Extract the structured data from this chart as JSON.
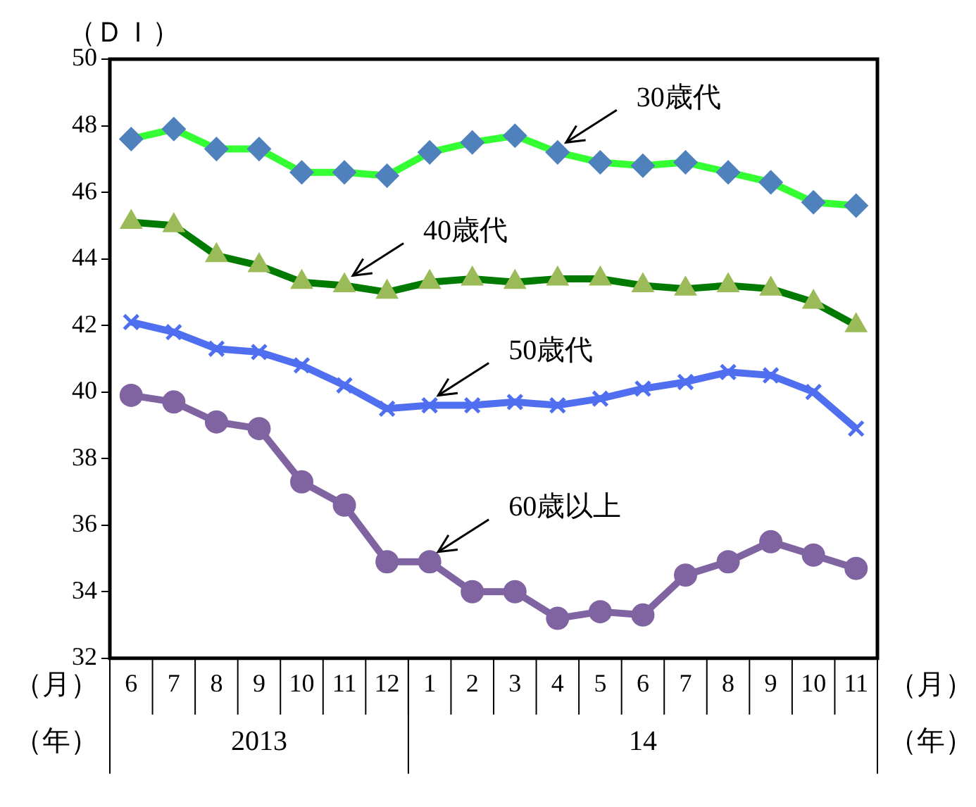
{
  "chart_data": {
    "type": "line",
    "ylabel": "（ＤＩ）",
    "categories": [
      "6",
      "7",
      "8",
      "9",
      "10",
      "11",
      "12",
      "1",
      "2",
      "3",
      "4",
      "5",
      "6",
      "7",
      "8",
      "9",
      "10",
      "11"
    ],
    "series": [
      {
        "name": "30歳代",
        "color": "#33ff33",
        "marker": "diamond",
        "colors": [
          "#4f81bd",
          "#4f81bd",
          "#4f81bd",
          "#4f81bd",
          "#4f81bd",
          "#4f81bd",
          "#4f81bd",
          "#4f81bd",
          "#4f81bd",
          "#4f81bd",
          "#4f81bd",
          "#4f81bd",
          "#4f81bd",
          "#4f81bd",
          "#4f81bd",
          "#4f81bd",
          "#4f81bd",
          "#4f81bd"
        ],
        "values": [
          47.6,
          47.9,
          47.3,
          47.3,
          46.6,
          46.6,
          46.5,
          47.2,
          47.5,
          47.7,
          47.2,
          46.9,
          46.8,
          46.9,
          46.6,
          46.3,
          45.7,
          45.6
        ]
      },
      {
        "name": "40歳代",
        "color": "#007a00",
        "marker": "triangle",
        "colors": [
          "#9bbb59",
          "#9bbb59",
          "#9bbb59",
          "#9bbb59",
          "#9bbb59",
          "#9bbb59",
          "#9bbb59",
          "#9bbb59",
          "#9bbb59",
          "#9bbb59",
          "#9bbb59",
          "#9bbb59",
          "#9bbb59",
          "#9bbb59",
          "#9bbb59",
          "#9bbb59",
          "#9bbb59",
          "#9bbb59"
        ],
        "values": [
          45.1,
          45.0,
          44.1,
          43.8,
          43.3,
          43.2,
          43.0,
          43.3,
          43.4,
          43.3,
          43.4,
          43.4,
          43.2,
          43.1,
          43.2,
          43.1,
          42.7,
          42.0
        ]
      },
      {
        "name": "50歳代",
        "color": "#4f6ff0",
        "marker": "cross",
        "values": [
          42.1,
          41.8,
          41.3,
          41.2,
          40.8,
          40.2,
          39.5,
          39.6,
          39.6,
          39.7,
          39.6,
          39.8,
          40.1,
          40.3,
          40.6,
          40.5,
          40.0,
          38.9
        ]
      },
      {
        "name": "60歳以上",
        "color": "#8064a2",
        "marker": "circle",
        "values": [
          39.9,
          39.7,
          39.1,
          38.9,
          37.3,
          36.6,
          34.9,
          34.9,
          34.0,
          34.0,
          33.2,
          33.4,
          33.3,
          34.5,
          34.9,
          35.5,
          35.1,
          34.7
        ]
      }
    ],
    "ylim": [
      32,
      50
    ],
    "yticks": [
      32,
      34,
      36,
      38,
      40,
      42,
      44,
      46,
      48,
      50
    ],
    "annotations": [
      "（月）",
      "（年）",
      "2013",
      "14"
    ],
    "grid": false,
    "legend": false
  }
}
